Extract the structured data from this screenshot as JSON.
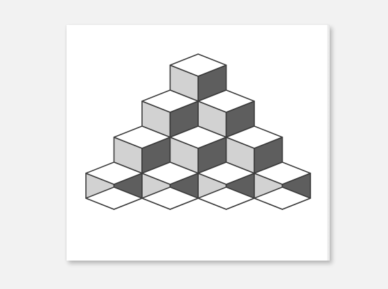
{
  "scene": {
    "background_color": "#f2f2f2",
    "canvas_color": "#ffffff",
    "artwork": {
      "subject": "isometric-cube-pyramid",
      "rows": 4,
      "colors": {
        "top": "#ffffff",
        "left": "#d2d2d2",
        "right": "#5e5e5e",
        "stroke": "#3a3a3a"
      }
    }
  }
}
